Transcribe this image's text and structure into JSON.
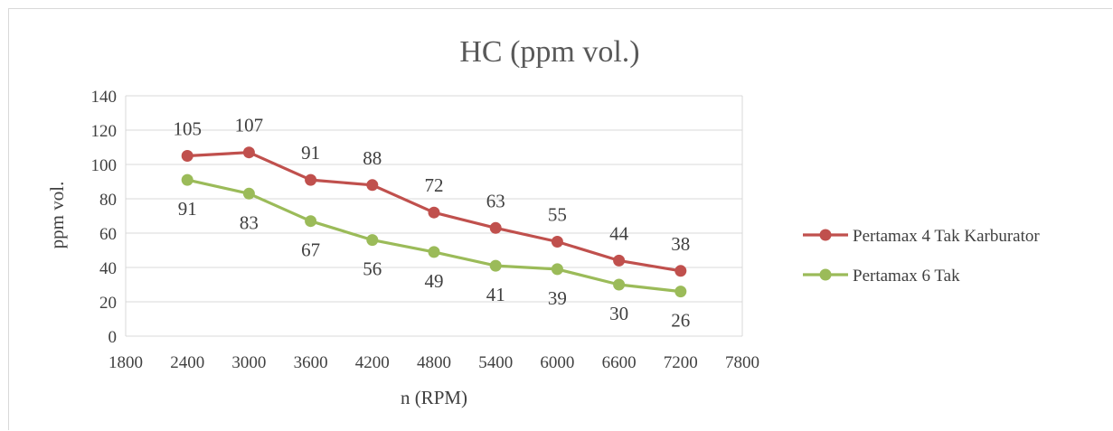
{
  "chart_data": {
    "type": "line",
    "title": "HC (ppm vol.)",
    "xlabel": "n (RPM)",
    "ylabel": "ppm vol.",
    "xlim": [
      1800,
      7800
    ],
    "ylim": [
      0,
      140
    ],
    "x_ticks": [
      1800,
      2400,
      3000,
      3600,
      4200,
      4800,
      5400,
      6000,
      6600,
      7200,
      7800
    ],
    "y_ticks": [
      0,
      20,
      40,
      60,
      80,
      100,
      120,
      140
    ],
    "x": [
      2400,
      3000,
      3600,
      4200,
      4800,
      5400,
      6000,
      6600,
      7200
    ],
    "grid": "horizontal",
    "legend_position": "right",
    "series": [
      {
        "name": "Pertamax 4 Tak Karburator",
        "color": "#c0504d",
        "values": [
          105,
          107,
          91,
          88,
          72,
          63,
          55,
          44,
          38
        ],
        "labels": [
          "105",
          "107",
          "91",
          "88",
          "72",
          "63",
          "55",
          "44",
          "38"
        ],
        "label_position": "above"
      },
      {
        "name": "Pertamax 6 Tak",
        "color": "#9bbb59",
        "values": [
          91,
          83,
          67,
          56,
          49,
          41,
          39,
          30,
          26
        ],
        "labels": [
          "91",
          "83",
          "67",
          "56",
          "49",
          "41",
          "39",
          "30",
          "26"
        ],
        "label_position": "below"
      }
    ]
  }
}
